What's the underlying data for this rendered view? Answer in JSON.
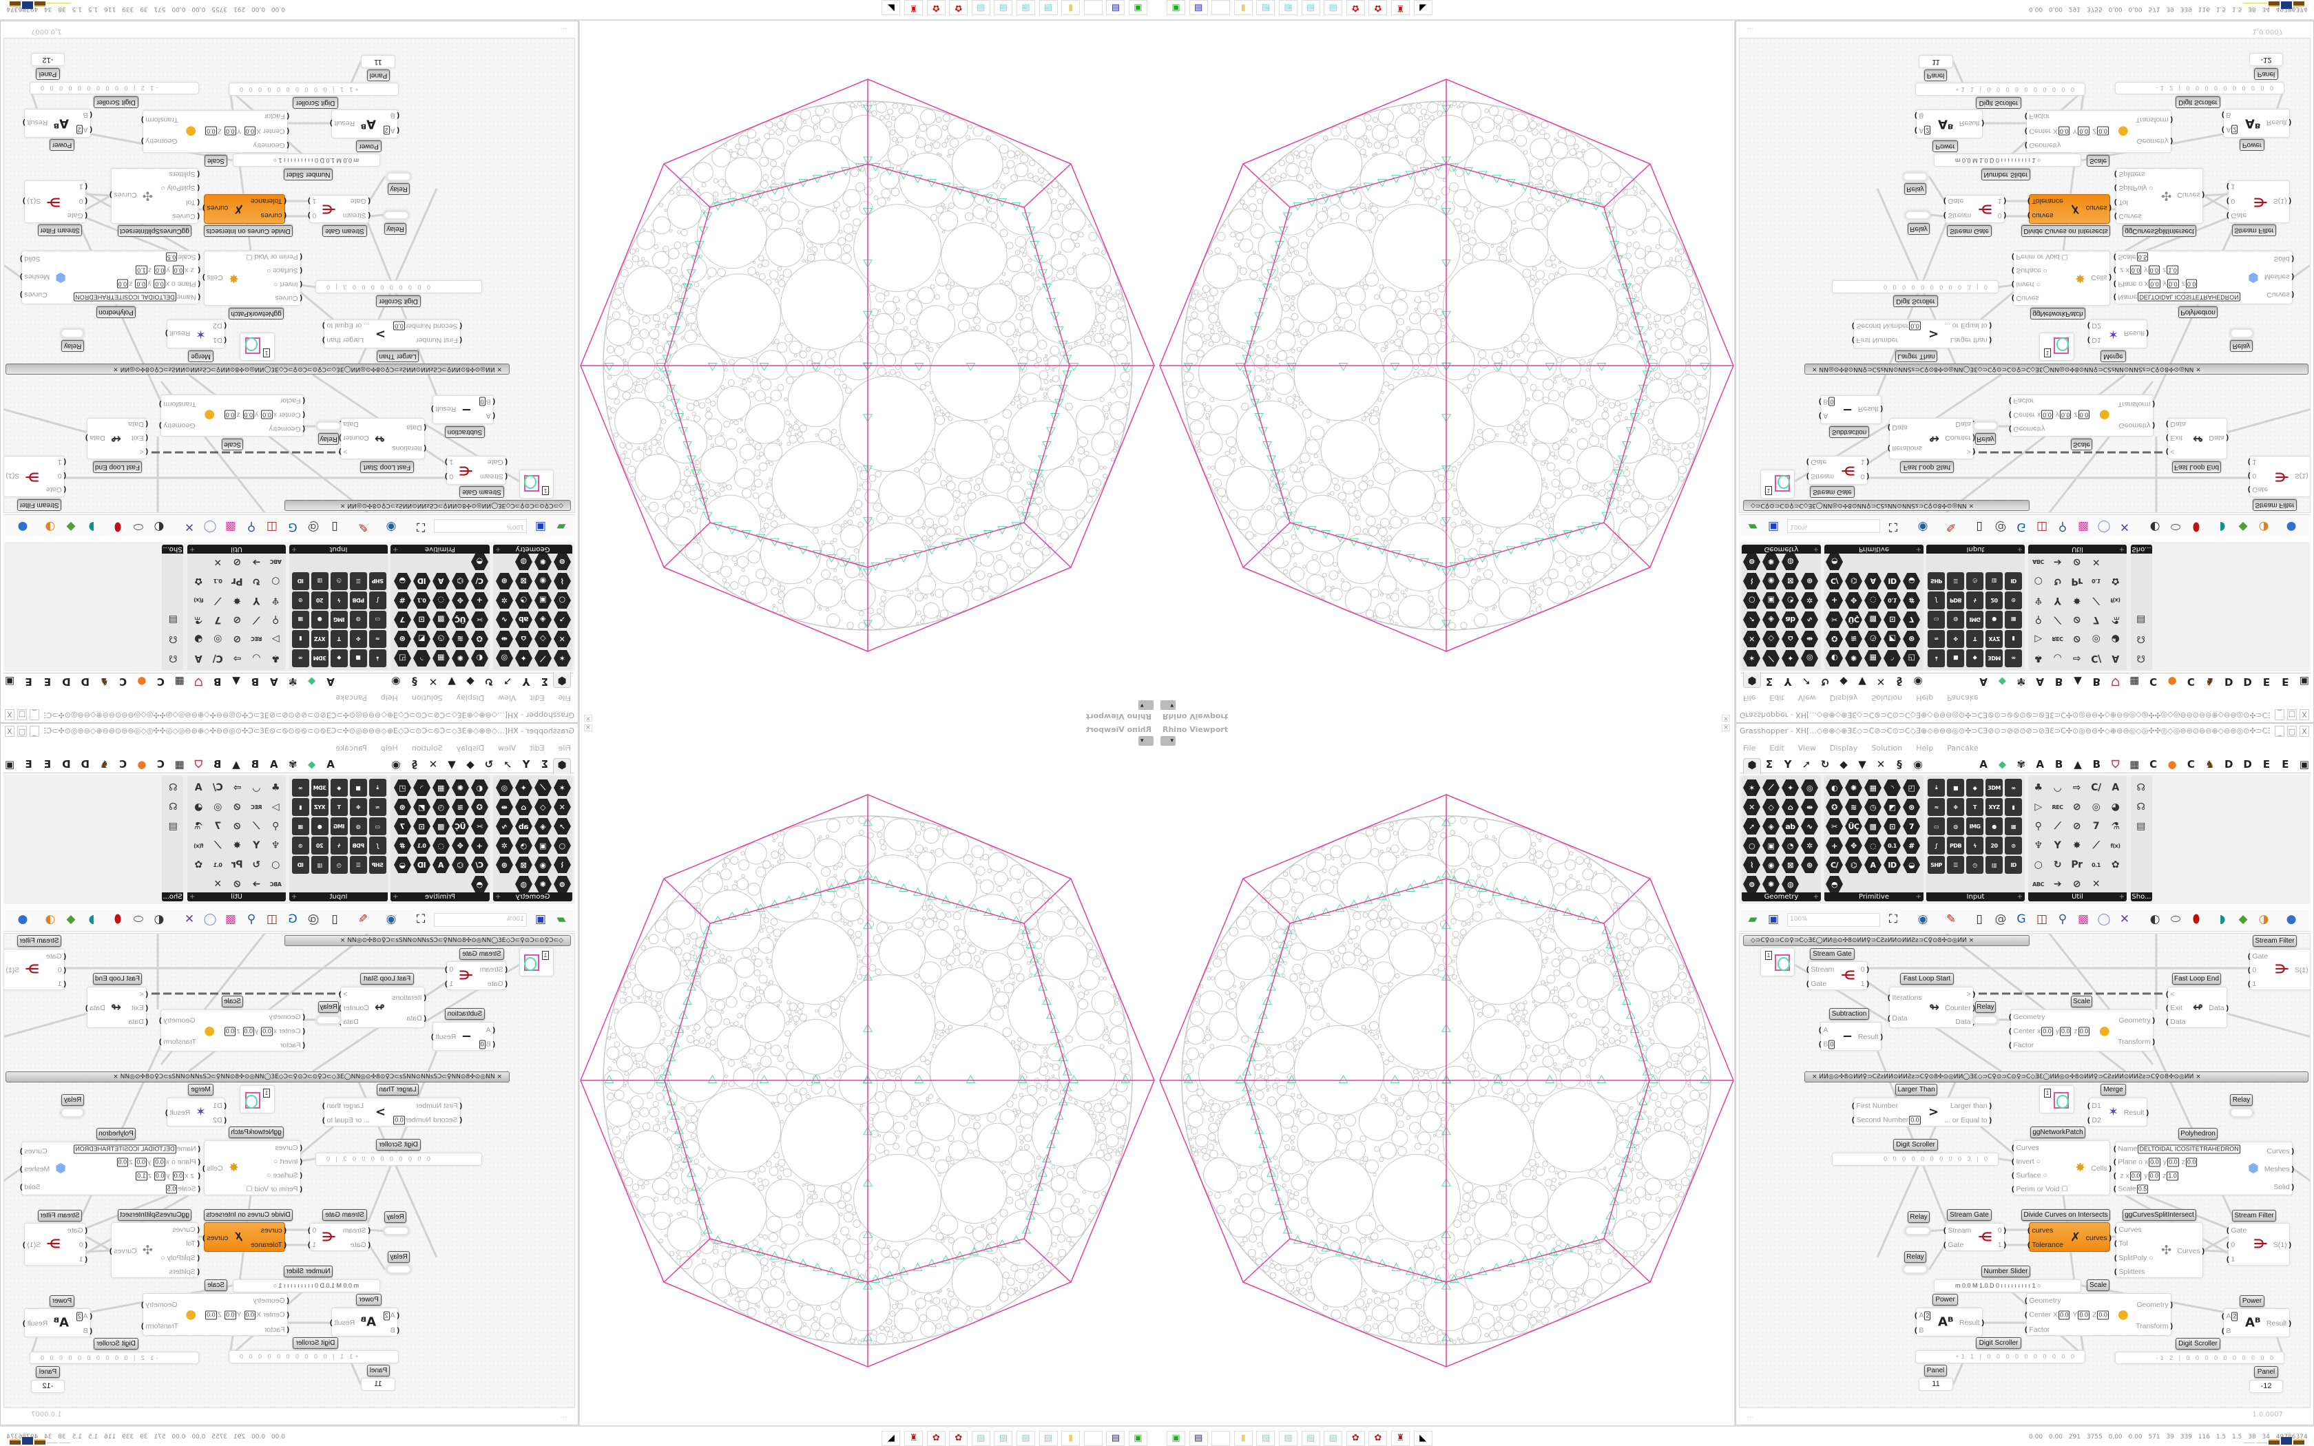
{
  "viewport": {
    "title": "Rhino Viewport",
    "menu_caret": "▾",
    "close": "×",
    "colors": {
      "circles": "#c8c8c8",
      "network": "#4fe0a0",
      "polyhedron": "#e040a0"
    }
  },
  "grasshopper": {
    "title": "Grasshopper - XH[...◇⊖⊕◇⊕ƎƐ◇⊃C⊘⊃C⊙⊃C◇Ǝ⊕◇⊖⊖⊖◎⊙✣⊃CƎ⊘⊙⊃⊘⊘⊙⊘⊃⊘ƎƐ⊃C✣⊙◎⊖⊖✣◇⊕⊖⊖◎◇◎✣✣◎◇◎⊖⊖⊙⊖⊖⊕◇⊖⊖◎⊙✣⊃CƎ⊘⊙⊃⊘⊘...",
    "window_controls": [
      "_",
      "□",
      "X"
    ],
    "menu": [
      "File",
      "Edit",
      "View",
      "Display",
      "Solution",
      "Help",
      "Pancake"
    ],
    "tabs": [
      "⬢",
      "Σ",
      "Y",
      "➚",
      "↻",
      "◆",
      "▼",
      "✕",
      "§",
      "◉",
      "A",
      "⬥",
      "✾",
      "A",
      "B",
      "▲",
      "B",
      "⛉",
      "▦",
      "C",
      "●",
      "C",
      "♞",
      "D",
      "D",
      "E",
      "E",
      "▣"
    ],
    "palette": [
      {
        "label": "Geometry",
        "style": "hex",
        "icons": [
          "✶",
          "⟋",
          "✦",
          "◎",
          "✕",
          "◇",
          "⌂",
          "⇹",
          "➚",
          "◈",
          "ab",
          "∿",
          "○",
          "▣",
          "◔",
          "✲",
          "⌇",
          "◉",
          "⊠",
          "⊛",
          "⊚",
          "✺",
          "◍"
        ]
      },
      {
        "label": "Primitive",
        "style": "hex",
        "icons": [
          "◐",
          "✺",
          "▦",
          "◝",
          "◰",
          "✪",
          "≋",
          "◷",
          "◩",
          "⊛",
          "✂",
          "ÜÇ",
          "▩",
          "⊡",
          "7",
          "+",
          "✥",
          "◌",
          "0.1",
          "#",
          "C/",
          "⌬",
          "A",
          "ID",
          "◒",
          "◓"
        ]
      },
      {
        "label": "Input",
        "style": "sq",
        "icons": [
          "⤓",
          "■",
          "◆",
          "3DM",
          "∞",
          "≈",
          "✥",
          "T",
          "XYZ",
          "▮",
          "▭",
          "◍",
          "IMG",
          "●",
          "▦",
          "∫",
          "PDB",
          "ϟ",
          "20",
          "⊙",
          "SHP",
          "☰",
          "◷",
          "▥",
          "ID"
        ]
      },
      {
        "label": "Util",
        "style": "ut",
        "icons": [
          "♣",
          "◡",
          "⇨",
          "C/",
          "A",
          "▷",
          "REC",
          "⊘",
          "◎",
          "◕",
          "⚲",
          "⟋",
          "⊘",
          "7",
          "⚗",
          "♆",
          "Y",
          "✸",
          "⟋",
          "f(x)",
          "○",
          "↻",
          "Pr",
          "0.1",
          "✿",
          "ABC",
          "➔",
          "⊘",
          "✕"
        ]
      },
      {
        "label": "Sho...",
        "style": "ut",
        "icons": [
          "☊",
          "☊",
          "▤"
        ]
      }
    ],
    "toolbar": {
      "zoom": "100%",
      "icons": [
        "new-file",
        "save",
        "zoom-extents",
        "eye",
        "brush",
        "sketch",
        "email",
        "gha",
        "window",
        "search",
        "package",
        "bulb",
        "wires",
        "preview-shaded",
        "preview-wire",
        "preview-red",
        "teal",
        "green",
        "orange-sphere",
        "blue-sphere"
      ]
    },
    "status": {
      "left": "...",
      "version": "1.0.0007"
    }
  },
  "canvas": {
    "group_bars": [
      "◇⊃C♀⊙⊃C⊙♀⊃C◇ƎƐ◯ИИ◎⊙✣8⊙ИИ♀⊃CƧƨИИ⊙ИИƧƨ⊃C♀⊙8✣⊙◎ИИ    ×",
      "×   ИИ◎⊙✣8⊙ИИ♀⊃CƧƨИИ⊙ИИƧƨ⊃C♀⊙8✣⊙◎ИИ◯ƎƐ◇⊃C♀⊙⊃C⊙♀⊃C◇ƎƐ◯ИИ◎⊙✣8⊙ИИ♀⊃CƧƨИИ⊙ИИƧƨ⊃C♀⊙8✣⊙◎ИИ   ×"
    ],
    "components": [
      {
        "label": "Stream Filter",
        "inputs": [
          "Gate",
          "0",
          "1"
        ],
        "outputs": [
          "S(1)"
        ],
        "icon": "⋺",
        "icon_color": "#b01020"
      },
      {
        "label": "",
        "kind": "param",
        "value": "1"
      },
      {
        "label": "Stream Gate",
        "inputs": [
          "Stream",
          "Gate"
        ],
        "outputs": [
          "0",
          "1"
        ],
        "icon": "⋲",
        "icon_color": "#b01020"
      },
      {
        "label": "Fast Loop Start",
        "inputs": [
          "Iterations",
          "Data"
        ],
        "outputs": [
          ">",
          "Counter",
          "Data"
        ],
        "icon": "↬",
        "icon_color": "#333"
      },
      {
        "label": "Relay",
        "kind": "relay"
      },
      {
        "label": "Subtraction",
        "inputs": [
          {
            "n": "A"
          },
          {
            "n": "B",
            "v": [
              [
                "",
                "0"
              ]
            ]
          }
        ],
        "outputs": [
          "Result"
        ],
        "icon": "−",
        "icon_color": "#222"
      },
      {
        "label": "Scale",
        "inputs": [
          "Geometry",
          {
            "n": "Center",
            "v": [
              [
                "x",
                "0.0"
              ],
              [
                "y",
                "0.0"
              ],
              [
                "z",
                "0.0"
              ]
            ]
          },
          "Factor"
        ],
        "outputs": [
          "Geometry",
          "Transform"
        ],
        "icon": "●",
        "icon_color": "#f0b020"
      },
      {
        "label": "Fast Loop End",
        "inputs": [
          "<",
          "Exit",
          "Data"
        ],
        "outputs": [
          "Data"
        ],
        "icon": "↫",
        "icon_color": "#333"
      },
      {
        "label": "Larger Than",
        "inputs": [
          "First Number",
          {
            "n": "Second Number",
            "v": [
              [
                "",
                "0.0"
              ]
            ]
          }
        ],
        "outputs": [
          "Larger than",
          "... or Equal to"
        ],
        "icon": ">",
        "icon_color": "#222"
      },
      {
        "label": "",
        "kind": "param",
        "value": "1"
      },
      {
        "label": "Merge",
        "inputs": [
          "D1",
          "D2"
        ],
        "outputs": [
          "Result"
        ],
        "icon": "✶",
        "icon_color": "#6040c0"
      },
      {
        "label": "Relay",
        "kind": "relay"
      },
      {
        "label": "ggNetworkPatch",
        "inputs": [
          "Curves",
          "Invert ○",
          "Surface ○",
          "Perim or Void ☐"
        ],
        "outputs": [
          "Cells"
        ],
        "icon": "✸",
        "icon_color": "#e0a020"
      },
      {
        "label": "Polyhedron",
        "inputs": [
          {
            "n": "Name",
            "v": [
              [
                "",
                "DELTOIDAL ICOSITETRAHEDRON"
              ]
            ]
          },
          {
            "n": "Plane",
            "v": [
              [
                "o x",
                "0.0"
              ],
              [
                "y",
                "0.0"
              ],
              [
                "z",
                "0.0"
              ]
            ]
          },
          {
            "n": "",
            "v": [
              [
                "z x",
                "0.0"
              ],
              [
                "y",
                "0.0"
              ],
              [
                "z",
                "1.0"
              ]
            ]
          },
          {
            "n": "Scale",
            "v": [
              [
                "",
                "0.5"
              ]
            ]
          }
        ],
        "outputs": [
          "Curves",
          "Meshes",
          "Solid"
        ],
        "icon": "⬢",
        "icon_color": "#80b0f0"
      },
      {
        "label": "Digit Scroller",
        "kind": "scroller",
        "digits": "0 0 0 0 0 0 0 0 0 3 | 0"
      },
      {
        "label": "Relay",
        "kind": "relay"
      },
      {
        "label": "Stream Gate",
        "inputs": [
          "Stream",
          "Gate"
        ],
        "outputs": [
          "0",
          "1"
        ],
        "icon": "⋲",
        "icon_color": "#b01020"
      },
      {
        "label": "Divide Curves on Intersects",
        "kind": "orange",
        "inputs": [
          "curves",
          "Tolerance"
        ],
        "outputs": [
          "curves"
        ],
        "icon": "✗",
        "icon_color": "#222"
      },
      {
        "label": "ggCurvesSplitIntersect",
        "inputs": [
          "Curves",
          "Tol",
          "SplitPoly ○",
          "Splitters"
        ],
        "outputs": [
          "Curves"
        ],
        "icon": "✣",
        "icon_color": "#888"
      },
      {
        "label": "Stream Filter",
        "inputs": [
          "Gate",
          "0",
          "1"
        ],
        "outputs": [
          "S(1)"
        ],
        "icon": "⋺",
        "icon_color": "#b01020"
      },
      {
        "label": "Relay",
        "kind": "relay"
      },
      {
        "label": "Number Slider",
        "kind": "slider",
        "digits": "m 0.0  M 1.0  D 0   ı ı ı ı ı ı ı ı ı 1 ○"
      },
      {
        "label": "Scale",
        "inputs": [
          "Geometry",
          {
            "n": "Center",
            "v": [
              [
                "X",
                "0.0"
              ],
              [
                "Y",
                "0.0"
              ],
              [
                "Z",
                "0.0"
              ]
            ]
          },
          "Factor"
        ],
        "outputs": [
          "Geometry",
          "Transform"
        ],
        "icon": "●",
        "icon_color": "#f0b020"
      },
      {
        "label": "Power",
        "inputs": [
          {
            "n": "A",
            "v": [
              [
                "",
                "2"
              ]
            ]
          },
          "B"
        ],
        "outputs": [
          "Result"
        ],
        "icon": "Aᴮ",
        "icon_color": "#222"
      },
      {
        "label": "Power",
        "inputs": [
          {
            "n": "A",
            "v": [
              [
                "",
                "2"
              ]
            ]
          },
          "B"
        ],
        "outputs": [
          "Result"
        ],
        "icon": "Aᴮ",
        "icon_color": "#222"
      },
      {
        "label": "Digit Scroller",
        "kind": "scroller",
        "digits": "+1 1 | 0 0 0 0 0 0 0 0 0 0"
      },
      {
        "label": "Digit Scroller",
        "kind": "scroller",
        "digits": "-1 2 | 0 0 0 0 0 0 0 0 0 0"
      },
      {
        "label": "Panel",
        "kind": "panel",
        "text": "11"
      },
      {
        "label": "Panel",
        "kind": "panel",
        "text": "-12"
      }
    ]
  },
  "rhino_toolbar": [
    "rhino-monitor",
    "save-64",
    "blank",
    "folder",
    "notepad",
    "notepad",
    "notepad",
    "notepad",
    "red-gear",
    "red-gear",
    "red-robot",
    "mask"
  ],
  "perf_stats": "0.00 0.00 291 3755 0.00 0.00 571 39 339 116 1.5 1.5 38 34 49786374"
}
